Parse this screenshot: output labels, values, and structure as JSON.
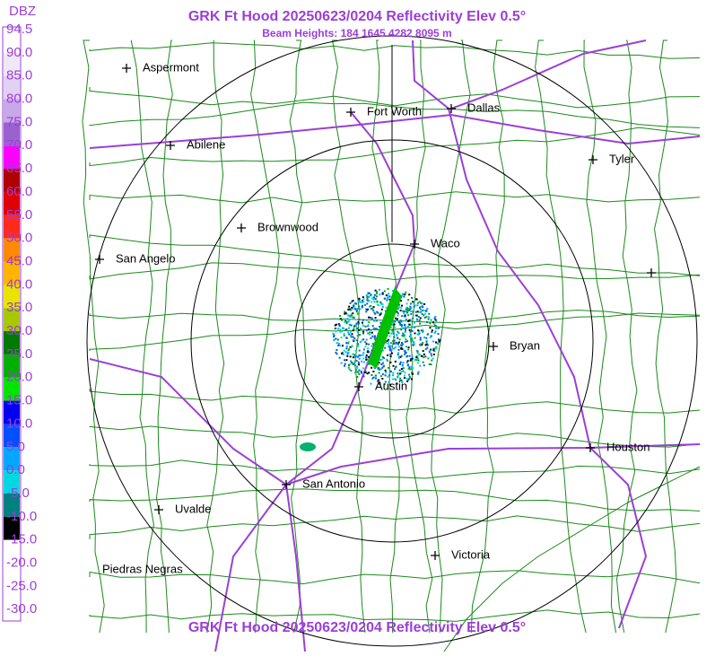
{
  "title": "GRK Ft Hood 20250623/0204 Reflectivity Elev 0.5°",
  "subtitle": "Beam Heights: 184 1645 4282 8095 m",
  "legend": {
    "title": "DBZ",
    "levels": [
      "94.5",
      "90.0",
      "85.0",
      "80.0",
      "75.0",
      "70.0",
      "65.0",
      "60.0",
      "55.0",
      "50.0",
      "45.0",
      "40.0",
      "35.0",
      "30.0",
      "25.0",
      "20.0",
      "15.0",
      "10.0",
      "5.0",
      "0.0",
      "-5.0",
      "-10.0",
      "-15.0",
      "-20.0",
      "-25.0",
      "-30.0"
    ],
    "colors": [
      "#ffffff",
      "#f0e8f8",
      "#e2d2f2",
      "#c8a8e8",
      "#9a62d0",
      "#ff00ff",
      "#b00000",
      "#e00000",
      "#ff2a1a",
      "#ff8a00",
      "#ffb400",
      "#e8e400",
      "#a8c800",
      "#007a00",
      "#00b000",
      "#00e400",
      "#0000f0",
      "#0050ff",
      "#00a8ff",
      "#00d8e0",
      "#008080",
      "#000000",
      "#ffffff",
      "#ffffff",
      "#ffffff"
    ]
  },
  "cities": [
    "Aspermont",
    "Abilene",
    "Fort Worth",
    "Dallas",
    "Tyler",
    "Brownwood",
    "Waco",
    "San Angelo",
    "Bryan",
    "Austin",
    "Houston",
    "San Antonio",
    "Uvalde",
    "Victoria",
    "Piedras Negras"
  ]
}
